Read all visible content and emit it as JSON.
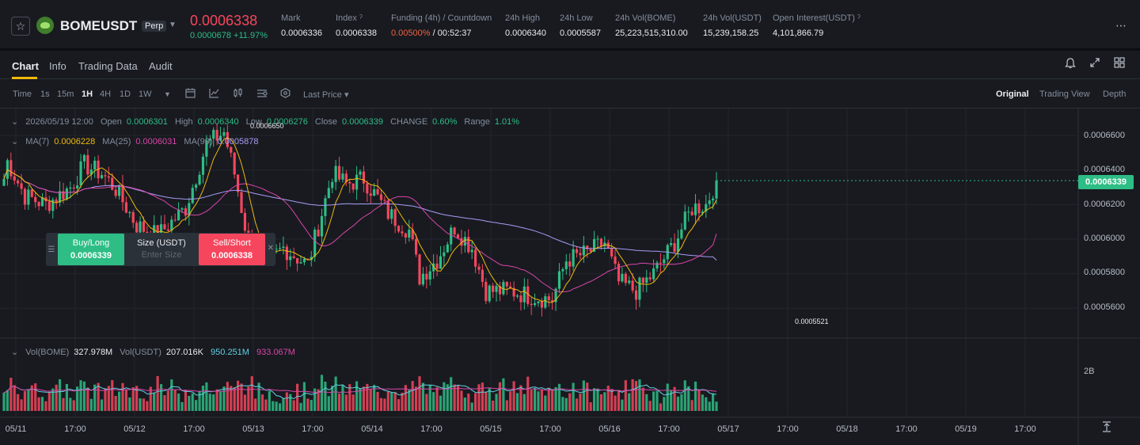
{
  "ticker": {
    "symbol": "BOMEUSDT",
    "contract_type": "Perp",
    "last_price": "0.0006338",
    "change": "0.0000678 +11.97%",
    "stats": [
      {
        "label": "Mark",
        "value": "0.0006336"
      },
      {
        "label": "Index ˀ",
        "value": "0.0006338"
      },
      {
        "label": "Funding (4h) / Countdown",
        "value_rate": "0.00500%",
        "value_countdown": " / 00:52:37"
      },
      {
        "label": "24h High",
        "value": "0.0006340"
      },
      {
        "label": "24h Low",
        "value": "0.0005587"
      },
      {
        "label": "24h Vol(BOME)",
        "value": "25,223,515,310.00"
      },
      {
        "label": "24h Vol(USDT)",
        "value": "15,239,158.25"
      },
      {
        "label": "Open Interest(USDT) ˀ",
        "value": "4,101,866.79"
      }
    ]
  },
  "tabs": [
    "Chart",
    "Info",
    "Trading Data",
    "Audit"
  ],
  "toolbar": {
    "intervals": [
      "Time",
      "1s",
      "15m",
      "1H",
      "4H",
      "1D",
      "1W"
    ],
    "active_interval": "1H",
    "price_type": "Last Price ▾",
    "views": [
      "Original",
      "Trading View",
      "Depth"
    ],
    "active_view": "Original"
  },
  "legend": {
    "date": "2026/05/19 12:00",
    "open_label": "Open",
    "open": "0.0006301",
    "high_label": "High",
    "high": "0.0006340",
    "low_label": "Low",
    "low": "0.0006276",
    "close_label": "Close",
    "close": "0.0006339",
    "change_label": "CHANGE",
    "change": "0.60%",
    "range_label": "Range",
    "range": "1.01%",
    "ma7_label": "MA(7)",
    "ma7": "0.0006228",
    "ma25_label": "MA(25)",
    "ma25": "0.0006031",
    "ma99_label": "MA(99)",
    "ma99": "0.0005878",
    "vol_label": "Vol(BOME)",
    "vol": "327.978M",
    "volusdt_label": "Vol(USDT)",
    "volusdt": "207.016K",
    "vol_ma1": "950.251M",
    "vol_ma2": "933.067M"
  },
  "order_panel": {
    "buy_label": "Buy/Long",
    "buy_price": "0.0006339",
    "size_label": "Size (USDT)",
    "size_placeholder": "Enter Size",
    "sell_label": "Sell/Short",
    "sell_price": "0.0006338"
  },
  "price_axis": [
    "0.0006600",
    "0.0006400",
    "0.0006200",
    "0.0006000",
    "0.0005800",
    "0.0005600"
  ],
  "current_price_badge": "0.0006339",
  "high_marker": "0.0006650",
  "low_marker": "0.0005521",
  "volume_axis_label": "2B",
  "time_axis": [
    "05/11",
    "17:00",
    "05/12",
    "17:00",
    "05/13",
    "17:00",
    "05/14",
    "17:00",
    "05/15",
    "17:00",
    "05/16",
    "17:00",
    "05/17",
    "17:00",
    "05/18",
    "17:00",
    "05/19",
    "17:00"
  ],
  "colors": {
    "up": "#2ebd85",
    "down": "#f6465d",
    "ma7": "#f0b90b",
    "ma25": "#d946a8",
    "ma99": "#a79cf5",
    "accent": "#f0b90b"
  },
  "chart_data": {
    "type": "candlestick",
    "interval": "1H",
    "price_range": [
      0.00055,
      0.000672
    ],
    "anchors": [
      {
        "t": "05/11 00:00",
        "p": 0.000635
      },
      {
        "t": "05/11 01:00",
        "p": 0.000645
      },
      {
        "t": "05/11 06:00",
        "p": 0.000625
      },
      {
        "t": "05/11 12:00",
        "p": 0.00062
      },
      {
        "t": "05/11 19:00",
        "p": 0.00063
      },
      {
        "t": "05/11 23:00",
        "p": 0.000643
      },
      {
        "t": "05/12 04:00",
        "p": 0.000638
      },
      {
        "t": "05/12 08:00",
        "p": 0.000629
      },
      {
        "t": "05/12 14:00",
        "p": 0.000608
      },
      {
        "t": "05/12 20:00",
        "p": 0.000602
      },
      {
        "t": "05/13 04:00",
        "p": 0.000618
      },
      {
        "t": "05/13 10:00",
        "p": 0.000655
      },
      {
        "t": "05/13 15:00",
        "p": 0.000662
      },
      {
        "t": "05/13 18:00",
        "p": 0.000638
      },
      {
        "t": "05/13 22:00",
        "p": 0.000598
      },
      {
        "t": "05/14 03:00",
        "p": 0.000586
      },
      {
        "t": "05/14 08:00",
        "p": 0.000595
      },
      {
        "t": "05/14 15:00",
        "p": 0.000585
      },
      {
        "t": "05/14 19:00",
        "p": 0.000615
      },
      {
        "t": "05/14 22:00",
        "p": 0.000638
      },
      {
        "t": "05/15 02:00",
        "p": 0.000632
      },
      {
        "t": "05/15 07:00",
        "p": 0.000635
      },
      {
        "t": "05/15 14:00",
        "p": 0.000615
      },
      {
        "t": "05/15 20:00",
        "p": 0.000605
      },
      {
        "t": "05/15 23:00",
        "p": 0.000578
      },
      {
        "t": "05/16 04:00",
        "p": 0.000588
      },
      {
        "t": "05/16 09:00",
        "p": 0.000607
      },
      {
        "t": "05/16 14:00",
        "p": 0.000595
      },
      {
        "t": "05/16 18:00",
        "p": 0.00057
      },
      {
        "t": "05/17 01:00",
        "p": 0.00057
      },
      {
        "t": "05/17 07:00",
        "p": 0.000567
      },
      {
        "t": "05/17 13:00",
        "p": 0.000565
      },
      {
        "t": "05/17 17:00",
        "p": 0.000588
      },
      {
        "t": "05/17 23:00",
        "p": 0.000592
      },
      {
        "t": "05/18 04:00",
        "p": 0.000598
      },
      {
        "t": "05/18 08:00",
        "p": 0.000575
      },
      {
        "t": "05/18 13:00",
        "p": 0.00057
      },
      {
        "t": "05/18 18:00",
        "p": 0.00058
      },
      {
        "t": "05/19 00:00",
        "p": 0.000598
      },
      {
        "t": "05/19 05:00",
        "p": 0.000618
      },
      {
        "t": "05/19 09:00",
        "p": 0.00062
      },
      {
        "t": "05/19 12:00",
        "p": 0.0006339
      }
    ],
    "ma7_last": 0.0006228,
    "ma25_last": 0.0006031,
    "ma99_last": 0.0005878,
    "volume_range_bome": [
      0,
      2500000000
    ],
    "volume_last_bome": 327978000
  }
}
